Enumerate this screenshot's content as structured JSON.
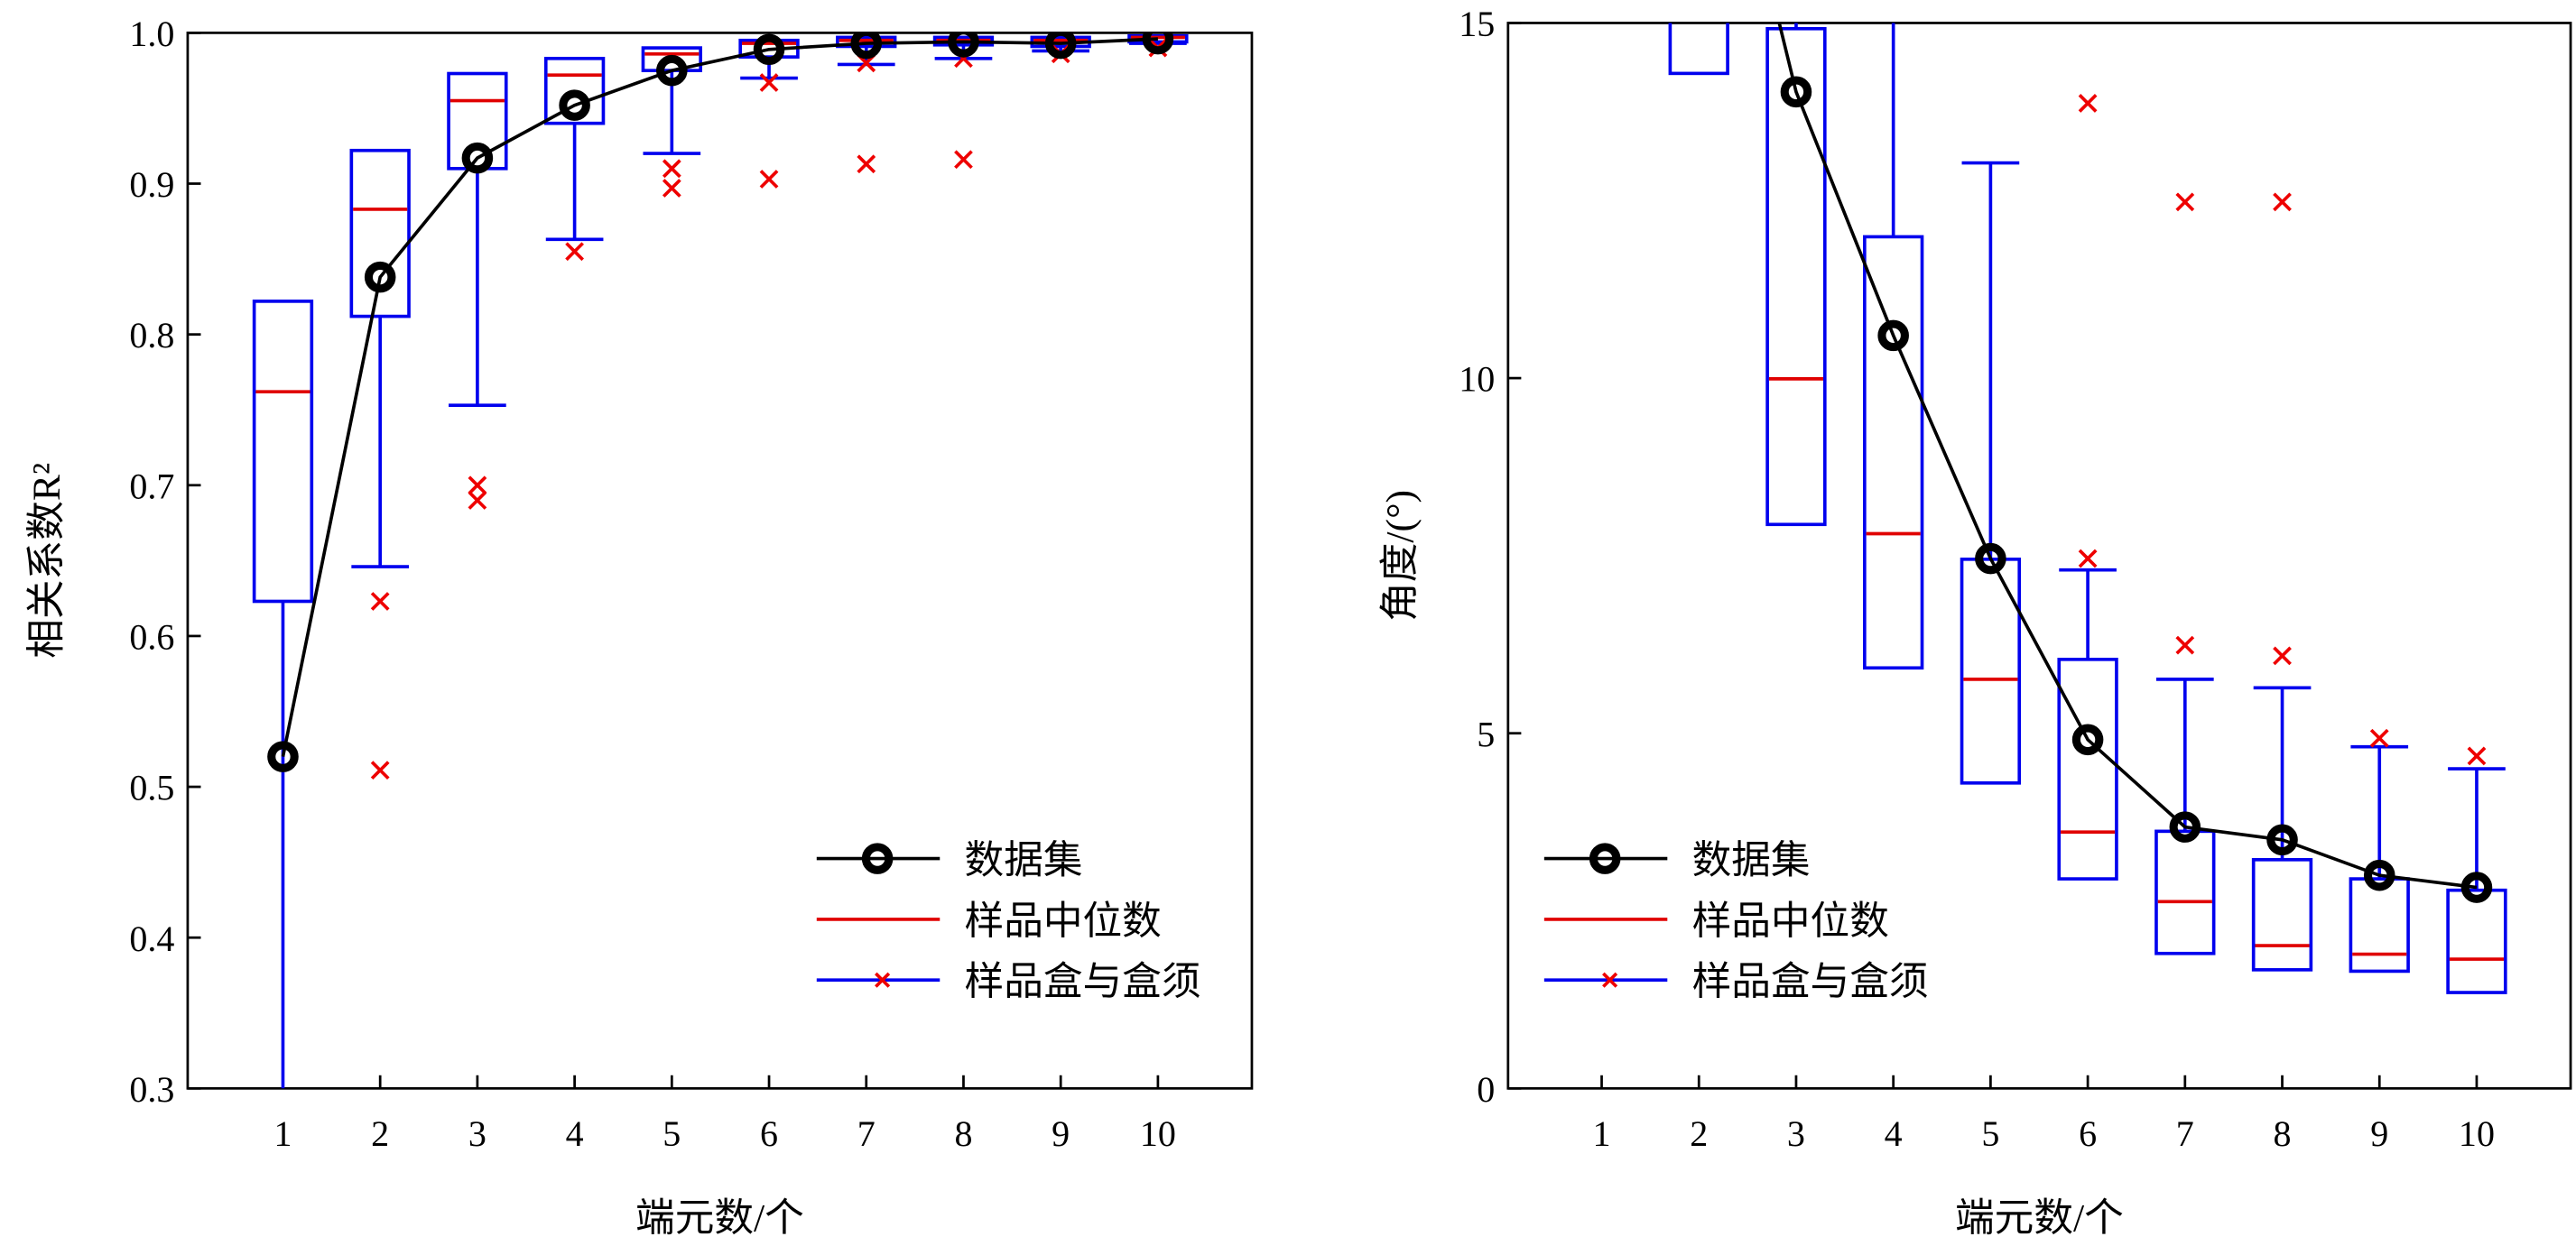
{
  "colors": {
    "mean": "#000000",
    "median": "#e00000",
    "box": "#0000ee",
    "outlier": "#ee0000"
  },
  "legend": {
    "mean": "数据集",
    "median": "样品中位数",
    "box": "样品盒与盒须"
  },
  "chart_data": [
    {
      "type": "box",
      "xlabel": "端元数/个",
      "ylabel": "相关系数R²",
      "ylim": [
        0.3,
        1.0
      ],
      "yticks": [
        "0.3",
        "0.4",
        "0.5",
        "0.6",
        "0.7",
        "0.8",
        "0.9",
        "1.0"
      ],
      "categories": [
        "1",
        "2",
        "3",
        "4",
        "5",
        "6",
        "7",
        "8",
        "9",
        "10"
      ],
      "legend_position": "bottom-right",
      "mean": [
        0.52,
        0.838,
        0.917,
        0.952,
        0.975,
        0.989,
        0.993,
        0.994,
        0.993,
        0.996
      ],
      "boxes": [
        {
          "q1": 0.623,
          "median": 0.762,
          "q3": 0.822,
          "lo": 0.3,
          "hi": 0.822,
          "outliers": []
        },
        {
          "q1": 0.812,
          "median": 0.883,
          "q3": 0.922,
          "lo": 0.646,
          "hi": 0.922,
          "outliers": [
            0.623,
            0.511
          ]
        },
        {
          "q1": 0.91,
          "median": 0.955,
          "q3": 0.973,
          "lo": 0.753,
          "hi": 0.973,
          "outliers": [
            0.7,
            0.69
          ]
        },
        {
          "q1": 0.94,
          "median": 0.972,
          "q3": 0.983,
          "lo": 0.863,
          "hi": 0.983,
          "outliers": [
            0.855
          ]
        },
        {
          "q1": 0.975,
          "median": 0.986,
          "q3": 0.99,
          "lo": 0.92,
          "hi": 0.99,
          "outliers": [
            0.91,
            0.897
          ]
        },
        {
          "q1": 0.984,
          "median": 0.993,
          "q3": 0.995,
          "lo": 0.97,
          "hi": 0.995,
          "outliers": [
            0.967,
            0.903
          ]
        },
        {
          "q1": 0.991,
          "median": 0.995,
          "q3": 0.997,
          "lo": 0.979,
          "hi": 0.997,
          "outliers": [
            0.98,
            0.913
          ]
        },
        {
          "q1": 0.992,
          "median": 0.995,
          "q3": 0.997,
          "lo": 0.983,
          "hi": 0.997,
          "outliers": [
            0.983,
            0.916
          ]
        },
        {
          "q1": 0.991,
          "median": 0.995,
          "q3": 0.997,
          "lo": 0.988,
          "hi": 0.997,
          "outliers": [
            0.986
          ]
        },
        {
          "q1": 0.994,
          "median": 0.997,
          "q3": 0.998,
          "lo": 0.993,
          "hi": 0.998,
          "outliers": [
            0.99
          ]
        }
      ]
    },
    {
      "type": "box",
      "xlabel": "端元数/个",
      "ylabel": "角度/(°)",
      "ylim": [
        0,
        15
      ],
      "yticks": [
        "0",
        "5",
        "10",
        "15"
      ],
      "categories": [
        "1",
        "2",
        "3",
        "4",
        "5",
        "6",
        "7",
        "8",
        "9",
        "10"
      ],
      "legend_position": "bottom-left",
      "mean": [
        null,
        null,
        14.03,
        10.6,
        7.46,
        4.91,
        3.68,
        3.5,
        3.0,
        2.83
      ],
      "mean_offscale_above": [
        true,
        true,
        false,
        false,
        false,
        false,
        false,
        false,
        false,
        false
      ],
      "boxes": [
        null,
        {
          "q1": 14.29,
          "median": null,
          "q3": null,
          "lo": 14.29,
          "hi": null,
          "outliers": []
        },
        {
          "q1": 7.94,
          "median": 9.99,
          "q3": 14.92,
          "lo": 7.94,
          "hi": null,
          "outliers": []
        },
        {
          "q1": 5.92,
          "median": 7.81,
          "q3": 11.99,
          "lo": 5.92,
          "hi": null,
          "outliers": []
        },
        {
          "q1": 4.3,
          "median": 5.76,
          "q3": 7.45,
          "lo": 4.3,
          "hi": 13.03,
          "outliers": []
        },
        {
          "q1": 2.95,
          "median": 3.61,
          "q3": 6.04,
          "lo": 2.95,
          "hi": 7.3,
          "outliers": [
            13.87,
            7.46
          ]
        },
        {
          "q1": 1.9,
          "median": 2.63,
          "q3": 3.62,
          "lo": 1.9,
          "hi": 5.76,
          "outliers": [
            12.48,
            6.24
          ]
        },
        {
          "q1": 1.67,
          "median": 2.01,
          "q3": 3.22,
          "lo": 1.67,
          "hi": 5.64,
          "outliers": [
            12.48,
            6.09
          ]
        },
        {
          "q1": 1.65,
          "median": 1.89,
          "q3": 2.95,
          "lo": 1.65,
          "hi": 4.81,
          "outliers": [
            4.93
          ]
        },
        {
          "q1": 1.35,
          "median": 1.82,
          "q3": 2.79,
          "lo": 1.35,
          "hi": 4.5,
          "outliers": [
            4.68
          ]
        }
      ]
    }
  ]
}
